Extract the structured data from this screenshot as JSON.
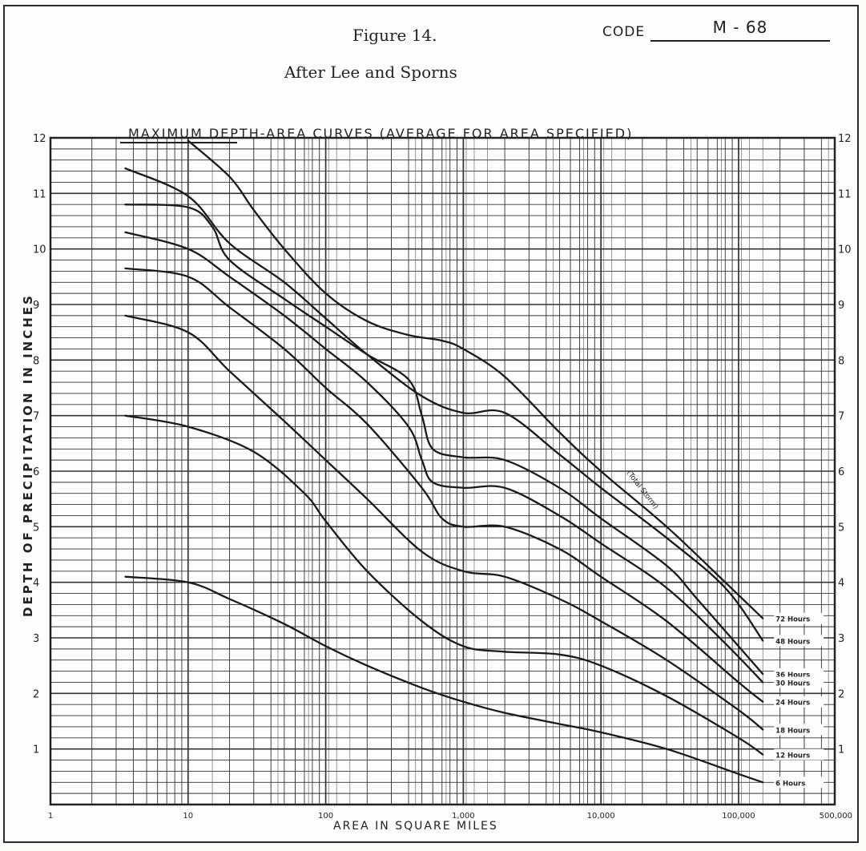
{
  "header": {
    "figure_title": "Figure 14.",
    "code_label": "CODE",
    "code_value": "M - 68",
    "subtitle": "After Lee and Sporns"
  },
  "chart_data": {
    "type": "line",
    "title": "MAXIMUM DEPTH-AREA CURVES (AVERAGE FOR AREA SPECIFIED)",
    "xlabel": "AREA IN SQUARE MILES",
    "ylabel": "DEPTH OF PRECIPITATION IN INCHES",
    "x_scale": "log",
    "xlim": [
      1,
      500000
    ],
    "ylim": [
      0,
      12
    ],
    "x_ticks": [
      {
        "value": 1,
        "label": "1"
      },
      {
        "value": 10,
        "label": "10"
      },
      {
        "value": 100,
        "label": "100"
      },
      {
        "value": 1000,
        "label": "1,000"
      },
      {
        "value": 10000,
        "label": "10,000"
      },
      {
        "value": 100000,
        "label": "100,000"
      },
      {
        "value": 500000,
        "label": "500,000"
      }
    ],
    "y_ticks": [
      1,
      2,
      3,
      4,
      5,
      6,
      7,
      8,
      9,
      10,
      11,
      12
    ],
    "grid": true,
    "annotation": "(Total Storm)",
    "series": [
      {
        "name": "72 Hours",
        "x": [
          10,
          20,
          30,
          50,
          100,
          200,
          400,
          700,
          1000,
          2000,
          5000,
          10000,
          30000,
          80000,
          150000
        ],
        "y": [
          11.95,
          11.3,
          10.7,
          10.0,
          9.2,
          8.7,
          8.45,
          8.35,
          8.2,
          7.7,
          6.7,
          6.0,
          5.0,
          4.0,
          3.35
        ]
      },
      {
        "name": "48 Hours",
        "x": [
          3.5,
          10,
          20,
          50,
          100,
          200,
          500,
          1000,
          2000,
          5000,
          10000,
          30000,
          80000,
          150000
        ],
        "y": [
          11.45,
          10.95,
          10.1,
          9.4,
          8.75,
          8.1,
          7.35,
          7.05,
          7.05,
          6.3,
          5.7,
          4.8,
          3.9,
          2.95
        ]
      },
      {
        "name": "36 Hours",
        "x": [
          3.5,
          10,
          15,
          20,
          50,
          100,
          200,
          400,
          500,
          600,
          1000,
          2000,
          5000,
          10000,
          30000,
          50000,
          150000
        ],
        "y": [
          10.8,
          10.75,
          10.4,
          9.8,
          9.1,
          8.6,
          8.1,
          7.65,
          7.0,
          6.4,
          6.25,
          6.2,
          5.7,
          5.15,
          4.3,
          3.7,
          2.35
        ]
      },
      {
        "name": "30 Hours",
        "x": [
          3.5,
          10,
          20,
          50,
          100,
          200,
          400,
          500,
          600,
          1000,
          2000,
          5000,
          10000,
          30000,
          80000,
          150000
        ],
        "y": [
          10.3,
          10.0,
          9.5,
          8.8,
          8.2,
          7.6,
          6.8,
          6.2,
          5.8,
          5.7,
          5.7,
          5.2,
          4.7,
          3.9,
          2.9,
          2.2
        ]
      },
      {
        "name": "24 Hours",
        "x": [
          3.5,
          10,
          20,
          50,
          100,
          200,
          500,
          700,
          1000,
          2000,
          5000,
          10000,
          30000,
          100000,
          150000
        ],
        "y": [
          9.65,
          9.5,
          8.95,
          8.2,
          7.5,
          6.85,
          5.7,
          5.15,
          5.0,
          5.0,
          4.6,
          4.1,
          3.3,
          2.2,
          1.85
        ]
      },
      {
        "name": "18 Hours",
        "x": [
          3.5,
          10,
          20,
          50,
          100,
          200,
          500,
          1000,
          2000,
          5000,
          10000,
          30000,
          100000,
          150000
        ],
        "y": [
          8.8,
          8.5,
          7.8,
          6.9,
          6.2,
          5.5,
          4.55,
          4.2,
          4.1,
          3.7,
          3.3,
          2.6,
          1.7,
          1.35
        ]
      },
      {
        "name": "12 Hours",
        "x": [
          3.5,
          10,
          30,
          70,
          100,
          200,
          500,
          1000,
          2000,
          5000,
          10000,
          30000,
          100000,
          150000
        ],
        "y": [
          7.0,
          6.8,
          6.35,
          5.6,
          5.1,
          4.2,
          3.3,
          2.85,
          2.75,
          2.7,
          2.5,
          1.95,
          1.2,
          0.9
        ]
      },
      {
        "name": "6 Hours",
        "x": [
          3.5,
          10,
          20,
          50,
          100,
          200,
          500,
          1000,
          2000,
          5000,
          10000,
          30000,
          100000,
          150000
        ],
        "y": [
          4.1,
          4.0,
          3.7,
          3.25,
          2.85,
          2.5,
          2.1,
          1.85,
          1.65,
          1.45,
          1.3,
          1.0,
          0.55,
          0.4
        ]
      }
    ]
  }
}
